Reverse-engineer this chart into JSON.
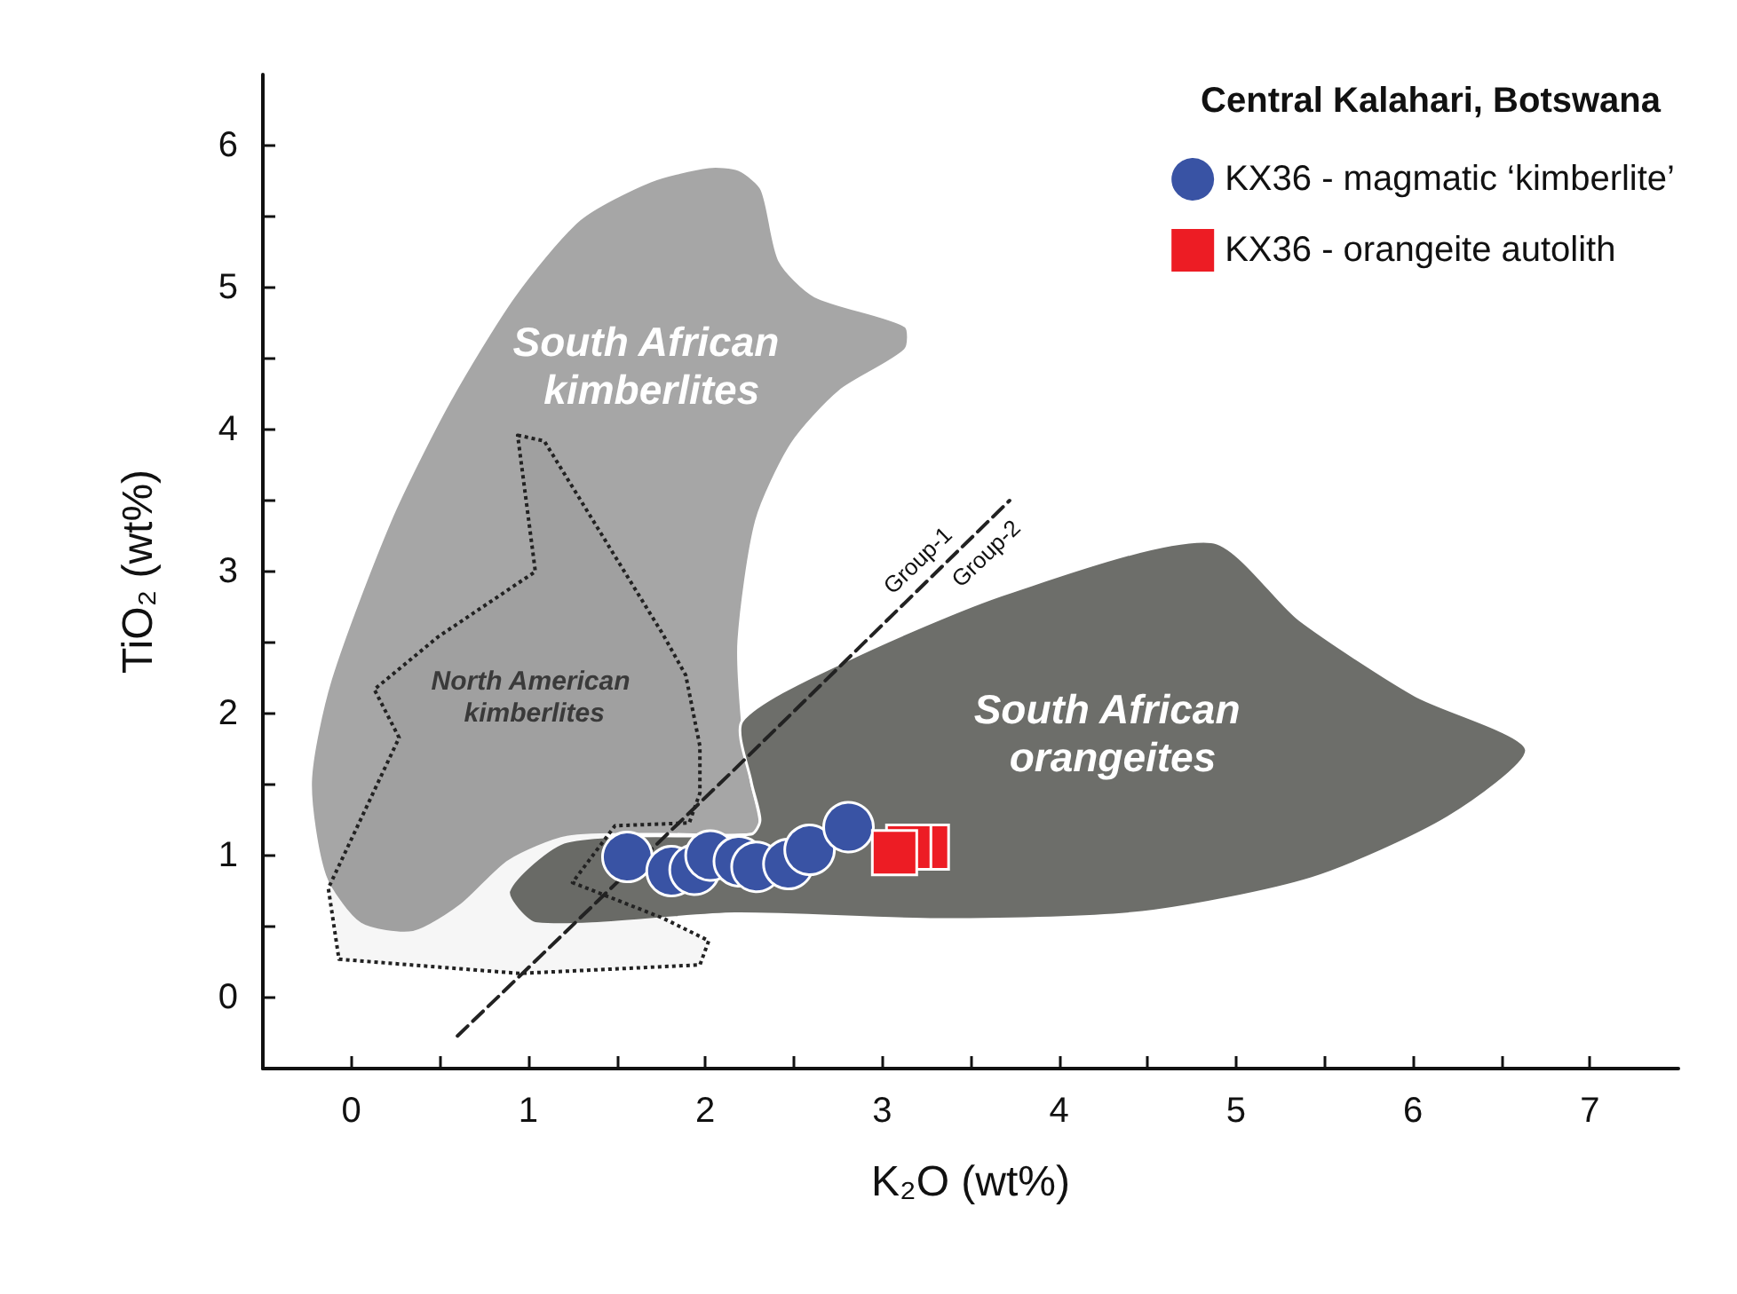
{
  "chart_data": {
    "type": "scatter",
    "xlabel": "K₂O (wt%)",
    "ylabel": "TiO₂ (wt%)",
    "legend_title": "Central Kalahari, Botswana",
    "xlim": [
      -0.5,
      7.5
    ],
    "ylim": [
      -0.5,
      6.5
    ],
    "xticks": [
      0,
      {
        "value": 0.5,
        "label": null
      },
      1,
      {
        "value": 1.5,
        "label": null
      },
      2,
      {
        "value": 2.5,
        "label": null
      },
      3,
      {
        "value": 3.5,
        "label": null
      },
      4,
      {
        "value": 4.5,
        "label": null
      },
      5,
      {
        "value": 5.5,
        "label": null
      },
      6,
      {
        "value": 6.5,
        "label": null
      },
      7
    ],
    "yticks": [
      0,
      {
        "value": 0.5,
        "label": null
      },
      1,
      {
        "value": 1.5,
        "label": null
      },
      2,
      {
        "value": 2.5,
        "label": null
      },
      3,
      {
        "value": 3.5,
        "label": null
      },
      4,
      {
        "value": 4.5,
        "label": null
      },
      5,
      {
        "value": 5.5,
        "label": null
      },
      6
    ],
    "grid": false,
    "legend": "top right",
    "series": [
      {
        "type": "area",
        "color": "#a6a6a6",
        "x": [
          2.19,
          2.32,
          2.42,
          2.62,
          3.13,
          3.13,
          2.76,
          2.49,
          2.29,
          2.19,
          2.21,
          2.26,
          2.31,
          2.26,
          1.76,
          1.22,
          0.89,
          0.62,
          0.35,
          0.05,
          -0.15,
          -0.23,
          -0.12,
          0.22,
          0.55,
          0.92,
          1.29,
          1.69,
          2.02
        ],
        "values": [
          5.83,
          5.69,
          5.19,
          4.94,
          4.73,
          4.56,
          4.27,
          3.9,
          3.36,
          2.52,
          1.94,
          1.52,
          1.23,
          1.15,
          1.15,
          1.13,
          0.96,
          0.65,
          0.46,
          0.52,
          0.86,
          1.52,
          2.23,
          3.36,
          4.19,
          4.94,
          5.48,
          5.75,
          5.85
        ]
      },
      {
        "type": "area",
        "color": "#6d6e6a",
        "x": [
          2.21,
          2.79,
          3.71,
          4.86,
          5.36,
          6.01,
          6.64,
          6.2,
          5.43,
          4.47,
          3.32,
          2.17,
          1.05,
          0.89,
          1.22,
          2.26,
          2.31,
          2.26
        ],
        "values": [
          1.95,
          2.37,
          2.85,
          3.21,
          2.66,
          2.13,
          1.75,
          1.27,
          0.84,
          0.6,
          0.55,
          0.59,
          0.52,
          0.75,
          1.1,
          1.15,
          1.25,
          1.52
        ]
      },
      {
        "type": "area",
        "color": "#222222",
        "line_style": "dotted",
        "x": [
          0.94,
          1.09,
          1.76,
          1.89,
          1.97,
          1.97,
          1.91,
          1.49,
          1.25,
          1.76,
          2.02,
          1.97,
          0.95,
          -0.07,
          -0.13,
          0.27,
          0.13,
          0.49,
          1.04,
          0.94
        ],
        "values": [
          3.96,
          3.92,
          2.56,
          2.27,
          1.77,
          1.44,
          1.23,
          1.21,
          0.81,
          0.56,
          0.4,
          0.23,
          0.17,
          0.27,
          0.77,
          1.83,
          2.17,
          2.54,
          3.0,
          3.96
        ]
      },
      {
        "type": "line",
        "color": "#222222",
        "line_style": "dashed",
        "marker": "none",
        "x": [
          0.6,
          2.16,
          3.72
        ],
        "values": [
          -0.27,
          1.6,
          3.5
        ]
      },
      {
        "name": "KX36 - magmatic ‘kimberlite’",
        "color": "#3953a4",
        "marker": "circle",
        "x": [
          1.56,
          1.81,
          1.94,
          2.03,
          2.19,
          2.29,
          2.47,
          2.59,
          2.81
        ],
        "values": [
          0.99,
          0.89,
          0.9,
          1.0,
          0.96,
          0.92,
          0.94,
          1.04,
          1.2
        ]
      },
      {
        "name": "KX36 - orangeite autolith",
        "color": "#ed1c24",
        "marker": "square",
        "x": [
          3.25,
          3.15,
          3.07
        ],
        "values": [
          1.06,
          1.06,
          1.02
        ]
      }
    ],
    "annotations": [
      "South African kimberlites",
      "South African orangeites",
      "North American kimberlites",
      "Group-1",
      "Group-2"
    ]
  }
}
